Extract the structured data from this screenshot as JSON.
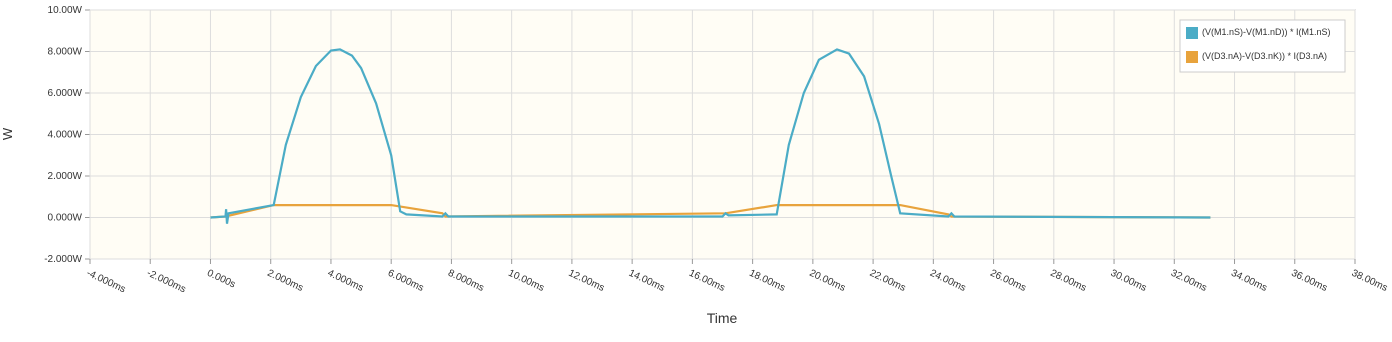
{
  "chart_data": {
    "type": "line",
    "xlabel": "Time",
    "ylabel": "W",
    "xlim": [
      -4,
      38
    ],
    "ylim": [
      -2,
      10
    ],
    "grid": true,
    "legend": "top-right",
    "xticks": [
      {
        "value": -4,
        "label": "-4.000ms"
      },
      {
        "value": -2,
        "label": "-2.000ms"
      },
      {
        "value": 0,
        "label": "0.000s"
      },
      {
        "value": 2,
        "label": "2.000ms"
      },
      {
        "value": 4,
        "label": "4.000ms"
      },
      {
        "value": 6,
        "label": "6.000ms"
      },
      {
        "value": 8,
        "label": "8.000ms"
      },
      {
        "value": 10,
        "label": "10.00ms"
      },
      {
        "value": 12,
        "label": "12.00ms"
      },
      {
        "value": 14,
        "label": "14.00ms"
      },
      {
        "value": 16,
        "label": "16.00ms"
      },
      {
        "value": 18,
        "label": "18.00ms"
      },
      {
        "value": 20,
        "label": "20.00ms"
      },
      {
        "value": 22,
        "label": "22.00ms"
      },
      {
        "value": 24,
        "label": "24.00ms"
      },
      {
        "value": 26,
        "label": "26.00ms"
      },
      {
        "value": 28,
        "label": "28.00ms"
      },
      {
        "value": 30,
        "label": "30.00ms"
      },
      {
        "value": 32,
        "label": "32.00ms"
      },
      {
        "value": 34,
        "label": "34.00ms"
      },
      {
        "value": 36,
        "label": "36.00ms"
      },
      {
        "value": 38,
        "label": "38.00ms"
      }
    ],
    "yticks": [
      {
        "value": -2,
        "label": "-2.000W"
      },
      {
        "value": 0,
        "label": "0.000W"
      },
      {
        "value": 2,
        "label": "2.000W"
      },
      {
        "value": 4,
        "label": "4.000W"
      },
      {
        "value": 6,
        "label": "6.000W"
      },
      {
        "value": 8,
        "label": "8.000W"
      },
      {
        "value": 10,
        "label": "10.00W"
      }
    ],
    "series": [
      {
        "name": "(V(M1.nS)-V(M1.nD)) * I(M1.nS)",
        "color": "#4bacc6",
        "x": [
          0,
          0.5,
          0.52,
          0.55,
          0.6,
          2.1,
          2.5,
          3,
          3.5,
          4,
          4.3,
          4.7,
          5,
          5.5,
          6,
          6.3,
          6.5,
          7.7,
          7.8,
          7.9,
          17,
          17.1,
          17.2,
          18.8,
          19.2,
          19.7,
          20.2,
          20.8,
          21.2,
          21.7,
          22.2,
          22.6,
          22.9,
          24.5,
          24.6,
          24.7,
          33.2
        ],
        "values": [
          0,
          0.05,
          0.4,
          -0.3,
          0.2,
          0.6,
          3.5,
          5.8,
          7.3,
          8.05,
          8.1,
          7.8,
          7.2,
          5.5,
          3,
          0.3,
          0.15,
          0.05,
          0.2,
          0.05,
          0.05,
          0.2,
          0.1,
          0.15,
          3.5,
          6,
          7.6,
          8.1,
          7.9,
          6.8,
          4.5,
          2,
          0.2,
          0.05,
          0.2,
          0.05,
          0
        ]
      },
      {
        "name": "(V(D3.nA)-V(D3.nK)) * I(D3.nA)",
        "color": "#e8a33c",
        "x": [
          0,
          0.5,
          2.1,
          6,
          7.7,
          7.8,
          17.1,
          18.8,
          22.9,
          24.5,
          24.6,
          33.2
        ],
        "values": [
          0,
          0.05,
          0.6,
          0.6,
          0.2,
          0.05,
          0.2,
          0.6,
          0.6,
          0.15,
          0.05,
          0
        ]
      }
    ]
  }
}
